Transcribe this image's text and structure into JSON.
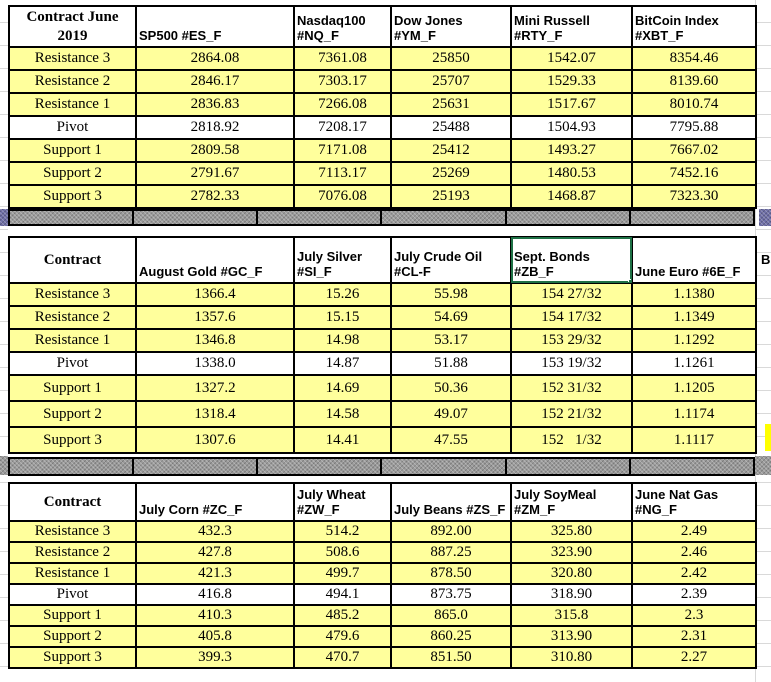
{
  "colors": {
    "cell_yellow": "#ffff9c",
    "pivot_row_white": "#ffffff",
    "separator_gray": "#9a9a9a",
    "separator_purple": "#6e6ea6",
    "selection_green": "#1e7145",
    "border_black": "#000000",
    "gridline_gray": "#d9d9d9",
    "margin_yellow_sliver": "#ffff00"
  },
  "right_margin": {
    "overflow_letter": "B"
  },
  "tables": [
    {
      "corner_label": "Contract June 2019",
      "column_headers": [
        "SP500 #ES_F",
        "Nasdaq100 #NQ_F",
        "Dow Jones #YM_F",
        "Mini Russell #RTY_F",
        "BitCoin Index #XBT_F"
      ],
      "rows": [
        {
          "label": "Resistance 3",
          "values": [
            "2864.08",
            "7361.08",
            "25850",
            "1542.07",
            "8354.46"
          ]
        },
        {
          "label": "Resistance 2",
          "values": [
            "2846.17",
            "7303.17",
            "25707",
            "1529.33",
            "8139.60"
          ]
        },
        {
          "label": "Resistance 1",
          "values": [
            "2836.83",
            "7266.08",
            "25631",
            "1517.67",
            "8010.74"
          ]
        },
        {
          "label": "Pivot",
          "values": [
            "2818.92",
            "7208.17",
            "25488",
            "1504.93",
            "7795.88"
          ]
        },
        {
          "label": "Support 1",
          "values": [
            "2809.58",
            "7171.08",
            "25412",
            "1493.27",
            "7667.02"
          ]
        },
        {
          "label": "Support 2",
          "values": [
            "2791.67",
            "7113.17",
            "25269",
            "1480.53",
            "7452.16"
          ]
        },
        {
          "label": "Support 3",
          "values": [
            "2782.33",
            "7076.08",
            "25193",
            "1468.87",
            "7323.30"
          ]
        }
      ]
    },
    {
      "corner_label": "Contract",
      "column_headers": [
        "August Gold #GC_F",
        "July Silver #SI_F",
        "July Crude Oil #CL-F",
        "Sept. Bonds #ZB_F",
        "June Euro #6E_F"
      ],
      "selected_header_index": 3,
      "rows": [
        {
          "label": "Resistance 3",
          "values": [
            "1366.4",
            "15.26",
            "55.98",
            "154 27/32",
            "1.1380"
          ]
        },
        {
          "label": "Resistance 2",
          "values": [
            "1357.6",
            "15.15",
            "54.69",
            "154 17/32",
            "1.1349"
          ]
        },
        {
          "label": "Resistance 1",
          "values": [
            "1346.8",
            "14.98",
            "53.17",
            "153 29/32",
            "1.1292"
          ]
        },
        {
          "label": "Pivot",
          "values": [
            "1338.0",
            "14.87",
            "51.88",
            "153 19/32",
            "1.1261"
          ]
        },
        {
          "label": "Support 1",
          "values": [
            "1327.2",
            "14.69",
            "50.36",
            "152 31/32",
            "1.1205"
          ]
        },
        {
          "label": "Support 2",
          "values": [
            "1318.4",
            "14.58",
            "49.07",
            "152 21/32",
            "1.1174"
          ]
        },
        {
          "label": "Support 3",
          "values": [
            "1307.6",
            "14.41",
            "47.55",
            "152   1/32",
            "1.1117"
          ]
        }
      ]
    },
    {
      "corner_label": "Contract",
      "column_headers": [
        "July  Corn #ZC_F",
        "July Wheat #ZW_F",
        "July Beans #ZS_F",
        "July SoyMeal #ZM_F",
        "June Nat Gas #NG_F"
      ],
      "rows": [
        {
          "label": "Resistance 3",
          "values": [
            "432.3",
            "514.2",
            "892.00",
            "325.80",
            "2.49"
          ]
        },
        {
          "label": "Resistance 2",
          "values": [
            "427.8",
            "508.6",
            "887.25",
            "323.90",
            "2.46"
          ]
        },
        {
          "label": "Resistance 1",
          "values": [
            "421.3",
            "499.7",
            "878.50",
            "320.80",
            "2.42"
          ]
        },
        {
          "label": "Pivot",
          "values": [
            "416.8",
            "494.1",
            "873.75",
            "318.90",
            "2.39"
          ]
        },
        {
          "label": "Support 1",
          "values": [
            "410.3",
            "485.2",
            "865.0",
            "315.8",
            "2.3"
          ]
        },
        {
          "label": "Support 2",
          "values": [
            "405.8",
            "479.6",
            "860.25",
            "313.90",
            "2.31"
          ]
        },
        {
          "label": "Support 3",
          "values": [
            "399.3",
            "470.7",
            "851.50",
            "310.80",
            "2.27"
          ]
        }
      ]
    }
  ]
}
